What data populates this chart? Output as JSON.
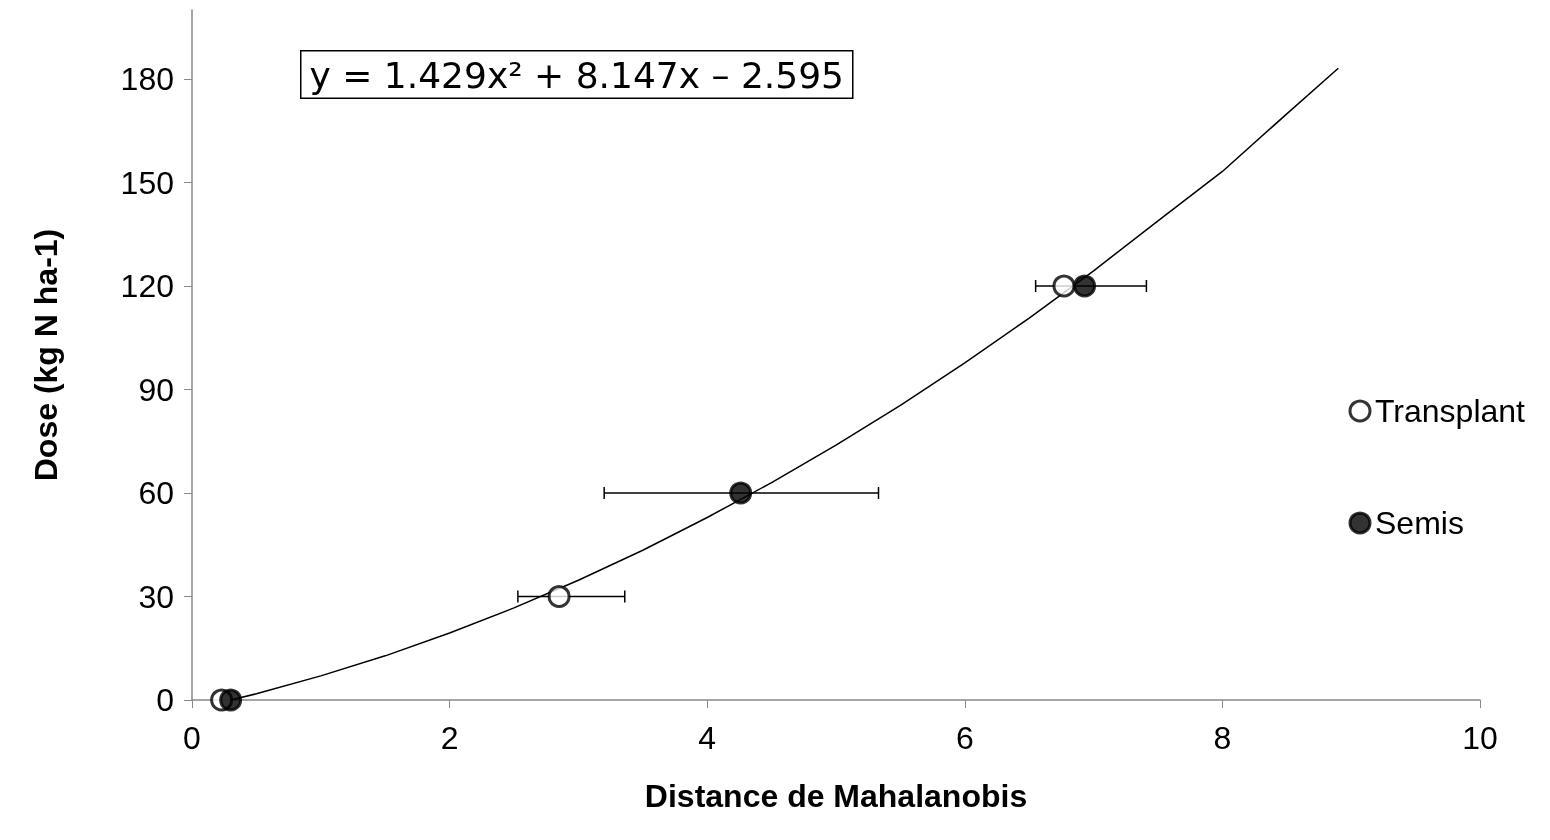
{
  "chart_data": {
    "type": "scatter",
    "xlabel": "Distance de Mahalanobis",
    "ylabel": "Dose (kg N ha-1)",
    "annotations": [
      "y = 1.429x² + 8.147x – 2.595"
    ],
    "xlim": [
      0,
      10
    ],
    "xticks": [
      0,
      2,
      4,
      6,
      8,
      10
    ],
    "ylim": [
      0,
      200
    ],
    "yticks": [
      0,
      30,
      60,
      90,
      120,
      150,
      180
    ],
    "grid": false,
    "legend": "right",
    "marker": "circle",
    "series": [
      {
        "name": "Transplant",
        "color": "#ffffff",
        "x": [
          0.23,
          2.85,
          6.77
        ],
        "values": [
          0,
          30,
          120
        ],
        "xerrors": [
          null,
          [
            2.53,
            3.36
          ],
          null
        ]
      },
      {
        "name": "Semis",
        "color": "#000000",
        "x": [
          0.3,
          4.26,
          6.93
        ],
        "values": [
          0,
          60,
          120
        ],
        "xerrors": [
          null,
          [
            3.2,
            5.33
          ],
          [
            6.55,
            7.41
          ]
        ]
      },
      {
        "type": "line",
        "color": "#000000",
        "line_style": "solid",
        "marker": "none",
        "x": [
          0.3,
          0.5,
          1,
          1.5,
          2,
          2.5,
          3,
          3.5,
          4,
          4.5,
          5,
          5.5,
          6,
          6.5,
          7,
          7.5,
          8,
          8.5,
          8.9
        ],
        "values": [
          0,
          1.8,
          7,
          12.8,
          19.4,
          26.7,
          34.7,
          43.4,
          52.9,
          63,
          73.9,
          85.4,
          97.7,
          110.7,
          124.4,
          138.9,
          153.2,
          169.9,
          183.1
        ]
      }
    ]
  }
}
